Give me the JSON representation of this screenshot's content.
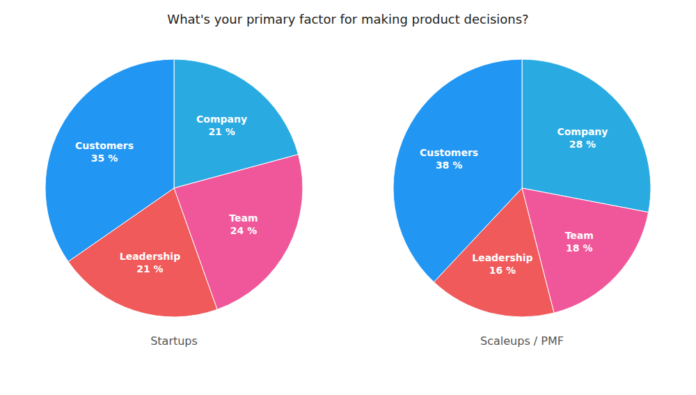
{
  "chart_data": {
    "type": "pie",
    "title": "What's your primary factor for making product decisions?",
    "categories": [
      "Company",
      "Team",
      "Leadership",
      "Customers"
    ],
    "colors": [
      "#29ABE2",
      "#F0579A",
      "#F05A5A",
      "#2196F3"
    ],
    "series": [
      {
        "name": "Startups",
        "values": [
          21,
          24,
          21,
          35
        ],
        "value_labels": [
          "21 %",
          "24 %",
          "21 %",
          "35 %"
        ]
      },
      {
        "name": "Scaleups / PMF",
        "values": [
          28,
          18,
          16,
          38
        ],
        "value_labels": [
          "28 %",
          "18 %",
          "16 %",
          "38 %"
        ]
      }
    ],
    "data_labels": true
  }
}
